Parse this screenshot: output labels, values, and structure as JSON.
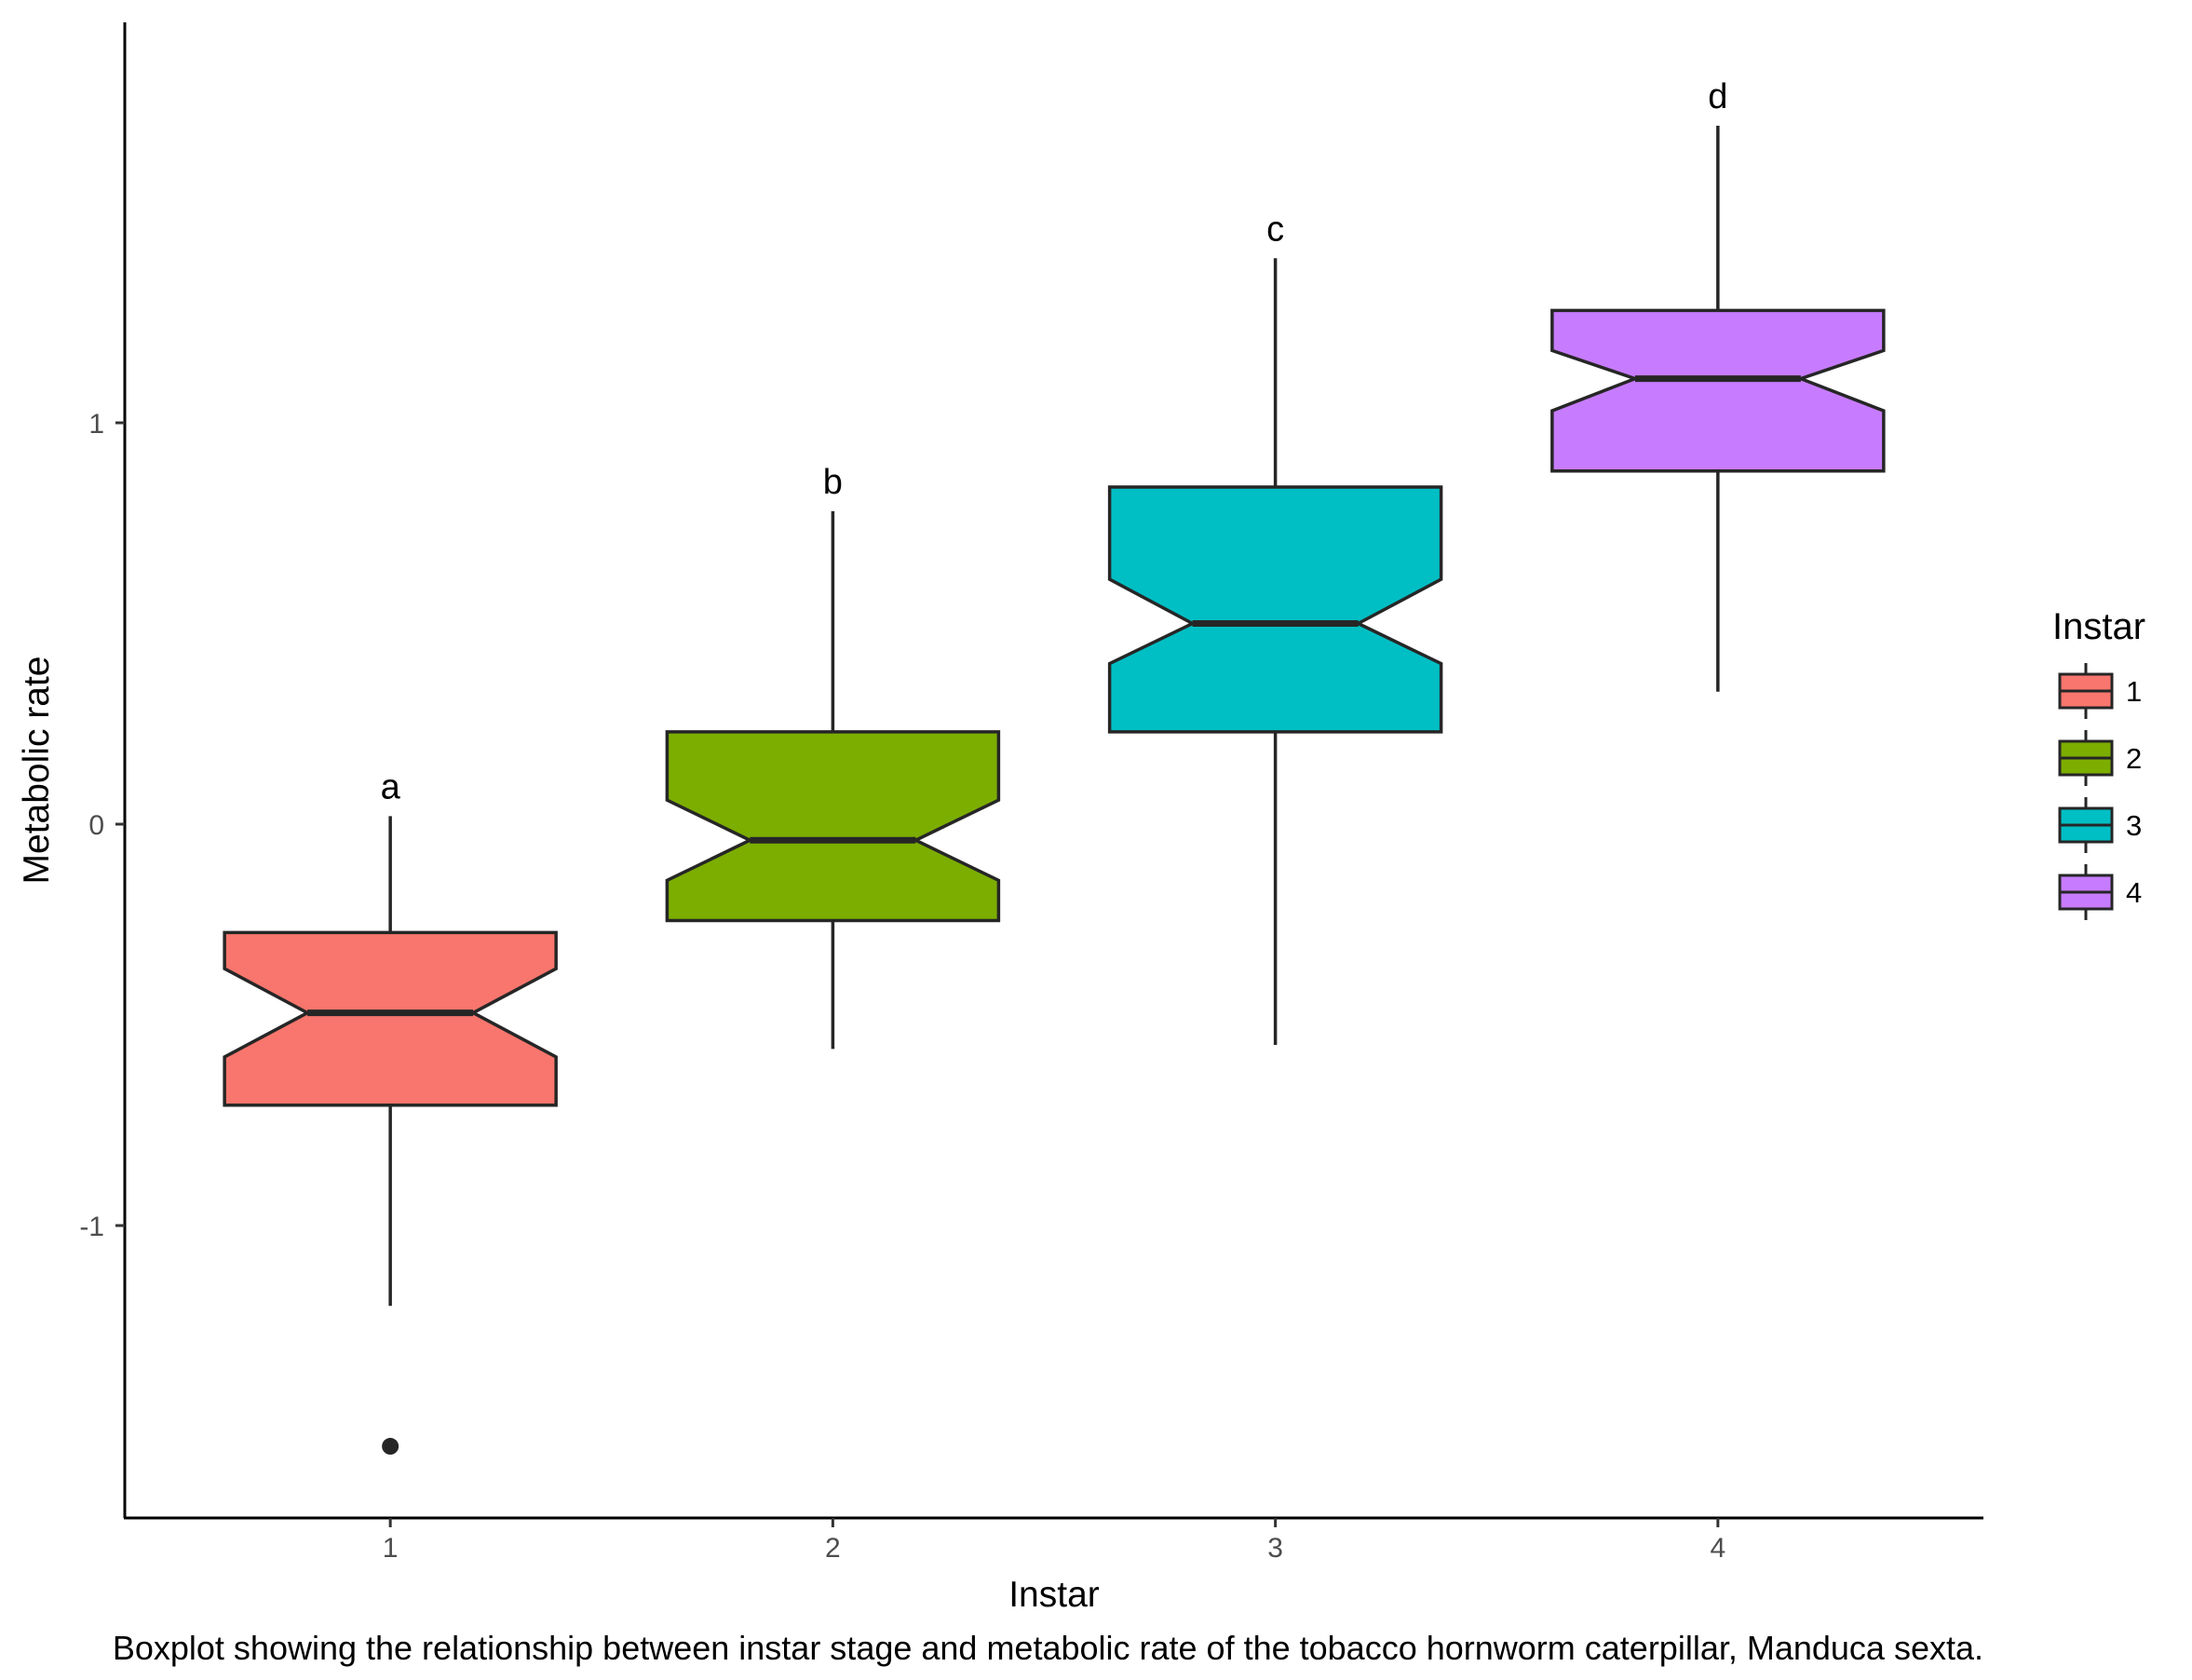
{
  "chart_data": {
    "type": "boxplot",
    "notched": true,
    "xlabel": "Instar",
    "ylabel": "Metabolic rate",
    "caption": "Boxplot showing the relationship between instar stage and metabolic rate of the tobacco hornworm caterpillar, Manduca sexta.",
    "categories": [
      "1",
      "2",
      "3",
      "4"
    ],
    "yticks": [
      -1,
      0,
      1
    ],
    "ytick_labels": [
      "-1",
      "0",
      "1"
    ],
    "ylim": [
      -1.7,
      2.0
    ],
    "grid": false,
    "legend": {
      "title": "Instar",
      "position": "right",
      "entries": [
        "1",
        "2",
        "3",
        "4"
      ]
    },
    "colors": [
      "#F8766D",
      "#7CAE00",
      "#00BFC4",
      "#C77CFF"
    ],
    "boxes": [
      {
        "category": "1",
        "q1": -0.7,
        "median": -0.47,
        "q3": -0.27,
        "whisker_low": -1.2,
        "whisker_high": 0.02,
        "notch_low": -0.58,
        "notch_high": -0.36,
        "outliers": [
          -1.55
        ],
        "label": "a"
      },
      {
        "category": "2",
        "q1": -0.24,
        "median": -0.04,
        "q3": 0.23,
        "whisker_low": -0.56,
        "whisker_high": 0.78,
        "notch_low": -0.14,
        "notch_high": 0.06,
        "outliers": [],
        "label": "b"
      },
      {
        "category": "3",
        "q1": 0.23,
        "median": 0.5,
        "q3": 0.84,
        "whisker_low": -0.55,
        "whisker_high": 1.41,
        "notch_low": 0.4,
        "notch_high": 0.61,
        "outliers": [],
        "label": "c"
      },
      {
        "category": "4",
        "q1": 0.88,
        "median": 1.11,
        "q3": 1.28,
        "whisker_low": 0.33,
        "whisker_high": 1.74,
        "notch_low": 1.03,
        "notch_high": 1.18,
        "outliers": [],
        "label": "d"
      }
    ]
  }
}
